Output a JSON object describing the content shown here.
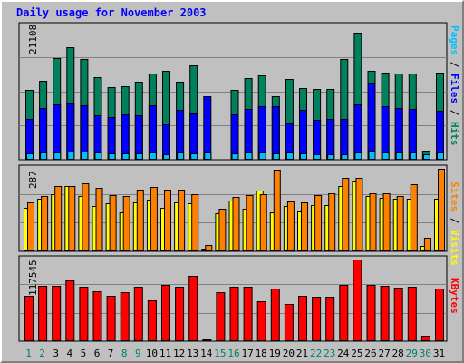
{
  "title": "Daily usage for November 2003",
  "colors": {
    "background": "#c0c0c0",
    "title": "#0000ff",
    "hits": "#00805c",
    "files": "#0000ff",
    "pages": "#00c0ff",
    "visits": "#ffff00",
    "sites": "#ff8000",
    "kbytes": "#ff0000",
    "weekday_label": "#000000",
    "weekend_label": "#00805c"
  },
  "legend": {
    "top": [
      {
        "text": "Pages",
        "color": "#00c0ff"
      },
      {
        "text": " / ",
        "color": "#000000"
      },
      {
        "text": "Files",
        "color": "#0000ff"
      },
      {
        "text": " / ",
        "color": "#000000"
      },
      {
        "text": "Hits",
        "color": "#00805c"
      }
    ],
    "middle": [
      {
        "text": "Sites",
        "color": "#ff8000"
      },
      {
        "text": " / ",
        "color": "#000000"
      },
      {
        "text": "Visits",
        "color": "#ffff00"
      }
    ],
    "bottom": [
      {
        "text": "KBytes",
        "color": "#ff0000"
      }
    ]
  },
  "chart_data": [
    {
      "type": "bar",
      "panel": "hits-files-pages",
      "ymax_label": "21108",
      "ylim": [
        0,
        21108
      ],
      "categories": [
        "1",
        "2",
        "3",
        "4",
        "5",
        "6",
        "7",
        "8",
        "9",
        "10",
        "11",
        "12",
        "13",
        "14",
        "15",
        "16",
        "17",
        "18",
        "19",
        "20",
        "21",
        "22",
        "23",
        "24",
        "25",
        "26",
        "27",
        "28",
        "29",
        "30",
        "31"
      ],
      "weekend_days": [
        "1",
        "2",
        "8",
        "9",
        "15",
        "16",
        "22",
        "23",
        "29",
        "30"
      ],
      "series": [
        {
          "name": "Hits",
          "color": "#00805c",
          "values": [
            11000,
            12500,
            16100,
            17800,
            16000,
            13000,
            11500,
            11600,
            12300,
            13700,
            14100,
            12300,
            14900,
            500,
            0,
            11100,
            12900,
            13300,
            10000,
            12800,
            11300,
            11200,
            11200,
            16000,
            20100,
            14100,
            13800,
            13700,
            13700,
            1400,
            13800
          ]
        },
        {
          "name": "Files",
          "color": "#0000ff",
          "values": [
            6500,
            8200,
            8700,
            8900,
            8600,
            7000,
            6700,
            7200,
            7100,
            8600,
            5600,
            7900,
            7300,
            10000,
            0,
            7200,
            8000,
            8500,
            8500,
            5800,
            7900,
            6300,
            6500,
            6500,
            8700,
            12100,
            8500,
            8200,
            8000,
            800,
            7800
          ]
        },
        {
          "name": "Pages",
          "color": "#00c0ff",
          "values": [
            1000,
            1100,
            1200,
            1300,
            1300,
            1200,
            1000,
            1000,
            1000,
            1200,
            900,
            1100,
            1000,
            1100,
            0,
            1000,
            1100,
            1100,
            1000,
            1100,
            1000,
            900,
            900,
            900,
            1200,
            1500,
            1100,
            1100,
            1100,
            900,
            1100
          ]
        }
      ]
    },
    {
      "type": "bar",
      "panel": "visits-sites",
      "ymax_label": "287",
      "ylim": [
        0,
        287
      ],
      "categories": [
        "1",
        "2",
        "3",
        "4",
        "5",
        "6",
        "7",
        "8",
        "9",
        "10",
        "11",
        "12",
        "13",
        "14",
        "15",
        "16",
        "17",
        "18",
        "19",
        "20",
        "21",
        "22",
        "23",
        "24",
        "25",
        "26",
        "27",
        "28",
        "29",
        "30",
        "31"
      ],
      "series": [
        {
          "name": "Visits",
          "color": "#ffff00",
          "values": [
            152,
            183,
            199,
            226,
            193,
            157,
            168,
            136,
            170,
            180,
            150,
            171,
            168,
            10,
            132,
            176,
            149,
            210,
            135,
            157,
            139,
            160,
            162,
            228,
            245,
            191,
            185,
            184,
            183,
            20,
            183
          ]
        },
        {
          "name": "Sites",
          "color": "#ff8000",
          "values": [
            171,
            192,
            226,
            228,
            235,
            222,
            196,
            192,
            213,
            225,
            215,
            216,
            200,
            22,
            147,
            189,
            194,
            200,
            285,
            172,
            169,
            194,
            202,
            255,
            255,
            203,
            202,
            193,
            233,
            47,
            287
          ]
        }
      ]
    },
    {
      "type": "bar",
      "panel": "kbytes",
      "ymax_label": "117545",
      "ylim": [
        0,
        117545
      ],
      "categories": [
        "1",
        "2",
        "3",
        "4",
        "5",
        "6",
        "7",
        "8",
        "9",
        "10",
        "11",
        "12",
        "13",
        "14",
        "15",
        "16",
        "17",
        "18",
        "19",
        "20",
        "21",
        "22",
        "23",
        "24",
        "25",
        "26",
        "27",
        "28",
        "29",
        "30",
        "31"
      ],
      "series": [
        {
          "name": "KBytes",
          "color": "#ff0000",
          "values": [
            65900,
            80200,
            79100,
            87300,
            78900,
            71500,
            65900,
            70500,
            78500,
            59300,
            81500,
            78100,
            93500,
            3000,
            70200,
            78800,
            78200,
            58100,
            75200,
            54100,
            65200,
            63600,
            64600,
            80600,
            117545,
            81300,
            79200,
            76900,
            78300,
            8200,
            76000
          ]
        }
      ]
    }
  ],
  "x_axis": {
    "labels": [
      "1",
      "2",
      "3",
      "4",
      "5",
      "6",
      "7",
      "8",
      "9",
      "10",
      "11",
      "12",
      "13",
      "14",
      "15",
      "16",
      "17",
      "18",
      "19",
      "20",
      "21",
      "22",
      "23",
      "24",
      "25",
      "26",
      "27",
      "28",
      "29",
      "30",
      "31"
    ]
  }
}
